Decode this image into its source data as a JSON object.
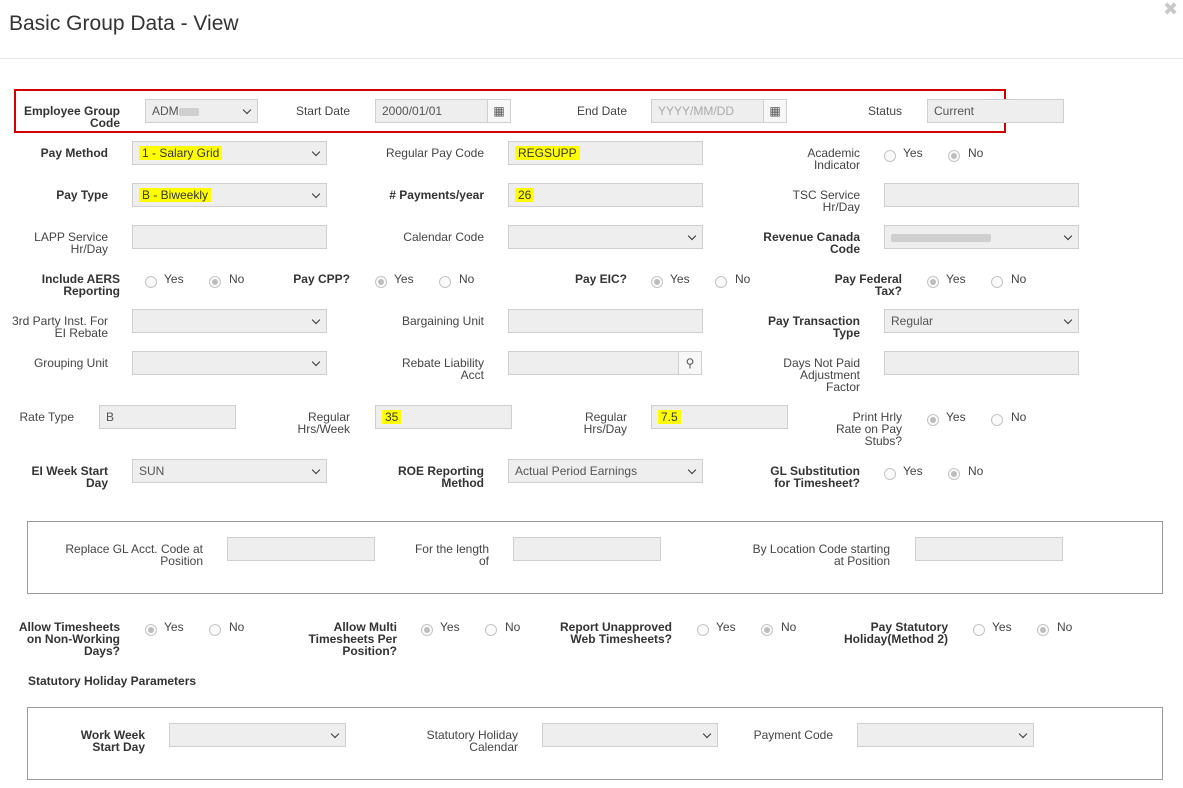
{
  "dialog": {
    "title": "Basic Group Data - View",
    "close_icon": "close-icon"
  },
  "fields": {
    "employee_group_code": {
      "label": [
        "Employee Group",
        "Code"
      ],
      "value": "ADM"
    },
    "start_date": {
      "label": [
        "Start Date"
      ],
      "value": "2000/01/01"
    },
    "end_date": {
      "label": [
        "End Date"
      ],
      "placeholder": "YYYY/MM/DD"
    },
    "status": {
      "label": [
        "Status"
      ],
      "value": "Current"
    },
    "pay_method": {
      "label": [
        "Pay Method"
      ],
      "value": "1 - Salary Grid"
    },
    "regular_pay_code": {
      "label": [
        "Regular Pay Code"
      ],
      "value": "REGSUPP"
    },
    "academic_indicator": {
      "label": [
        "Academic",
        "Indicator"
      ],
      "yes": "Yes",
      "no": "No",
      "selected": "No"
    },
    "pay_type": {
      "label": [
        "Pay Type"
      ],
      "value": "B - Biweekly"
    },
    "payments_per_year": {
      "label": [
        "# Payments/year"
      ],
      "value": "26"
    },
    "tsc_service": {
      "label": [
        "TSC Service",
        "Hr/Day"
      ],
      "value": ""
    },
    "lapp_service": {
      "label": [
        "LAPP Service",
        "Hr/Day"
      ],
      "value": ""
    },
    "calendar_code": {
      "label": [
        "Calendar Code"
      ],
      "value": ""
    },
    "revenue_canada_code": {
      "label": [
        "Revenue Canada",
        "Code"
      ],
      "value": ""
    },
    "include_aers": {
      "label": [
        "Include AERS",
        "Reporting"
      ],
      "yes": "Yes",
      "no": "No",
      "selected": "No"
    },
    "pay_cpp": {
      "label": [
        "Pay CPP?"
      ],
      "yes": "Yes",
      "no": "No",
      "selected": "Yes"
    },
    "pay_eic": {
      "label": [
        "Pay EIC?"
      ],
      "yes": "Yes",
      "no": "No",
      "selected": "Yes"
    },
    "pay_federal_tax": {
      "label": [
        "Pay Federal",
        "Tax?"
      ],
      "yes": "Yes",
      "no": "No",
      "selected": "Yes"
    },
    "third_party": {
      "label": [
        "3rd Party Inst. For",
        "EI Rebate"
      ],
      "value": ""
    },
    "bargaining_unit": {
      "label": [
        "Bargaining Unit"
      ],
      "value": ""
    },
    "pay_transaction_type": {
      "label": [
        "Pay Transaction",
        "Type"
      ],
      "value": "Regular"
    },
    "grouping_unit": {
      "label": [
        "Grouping Unit"
      ],
      "value": ""
    },
    "rebate_liability_acct": {
      "label": [
        "Rebate Liability",
        "Acct"
      ],
      "value": ""
    },
    "days_not_paid": {
      "label": [
        "Days Not Paid",
        "Adjustment",
        "Factor"
      ],
      "value": ""
    },
    "rate_type": {
      "label": [
        "Rate Type"
      ],
      "value": "B"
    },
    "regular_hrs_week": {
      "label": [
        "Regular",
        "Hrs/Week"
      ],
      "value": "35"
    },
    "regular_hrs_day": {
      "label": [
        "Regular",
        "Hrs/Day"
      ],
      "value": "7.5"
    },
    "print_hrly_rate": {
      "label": [
        "Print Hrly",
        "Rate on Pay",
        "Stubs?"
      ],
      "yes": "Yes",
      "no": "No",
      "selected": "Yes"
    },
    "ei_week_start_day": {
      "label": [
        "EI Week Start",
        "Day"
      ],
      "value": "SUN"
    },
    "roe_reporting_method": {
      "label": [
        "ROE Reporting",
        "Method"
      ],
      "value": "Actual Period Earnings"
    },
    "gl_substitution": {
      "label": [
        "GL Substitution",
        "for Timesheet?"
      ],
      "yes": "Yes",
      "no": "No",
      "selected": "No"
    }
  },
  "gl_box": {
    "replace_gl": {
      "label": [
        "Replace GL Acct. Code at",
        "Position"
      ],
      "value": ""
    },
    "length_of": {
      "label": [
        "For the length",
        "of"
      ],
      "value": ""
    },
    "by_location": {
      "label": [
        "By Location Code starting",
        "at Position"
      ],
      "value": ""
    }
  },
  "timesheets": {
    "allow_non_working": {
      "label": [
        "Allow Timesheets",
        "on Non-Working",
        "Days?"
      ],
      "yes": "Yes",
      "no": "No",
      "selected": "Yes"
    },
    "allow_multi": {
      "label": [
        "Allow Multi",
        "Timesheets Per",
        "Position?"
      ],
      "yes": "Yes",
      "no": "No",
      "selected": "Yes"
    },
    "report_unapproved": {
      "label": [
        "Report Unapproved",
        "Web Timesheets?"
      ],
      "yes": "Yes",
      "no": "No",
      "selected": "No"
    },
    "pay_statutory": {
      "label": [
        "Pay Statutory",
        "Holiday(Method 2)"
      ],
      "yes": "Yes",
      "no": "No",
      "selected": "No"
    }
  },
  "statutory": {
    "heading": "Statutory Holiday Parameters",
    "work_week_start_day": {
      "label": [
        "Work Week",
        "Start Day"
      ],
      "value": ""
    },
    "statutory_holiday_calendar": {
      "label": [
        "Statutory Holiday",
        "Calendar"
      ],
      "value": ""
    },
    "payment_code": {
      "label": [
        "Payment Code"
      ],
      "value": ""
    }
  },
  "icons": {
    "calendar": "calendar-icon",
    "search": "search-icon",
    "dropdown": "chevron-down-icon"
  },
  "colors": {
    "highlight": "#ffff00",
    "annotation_box": "#d50000",
    "field_bg": "#eeeeee"
  }
}
